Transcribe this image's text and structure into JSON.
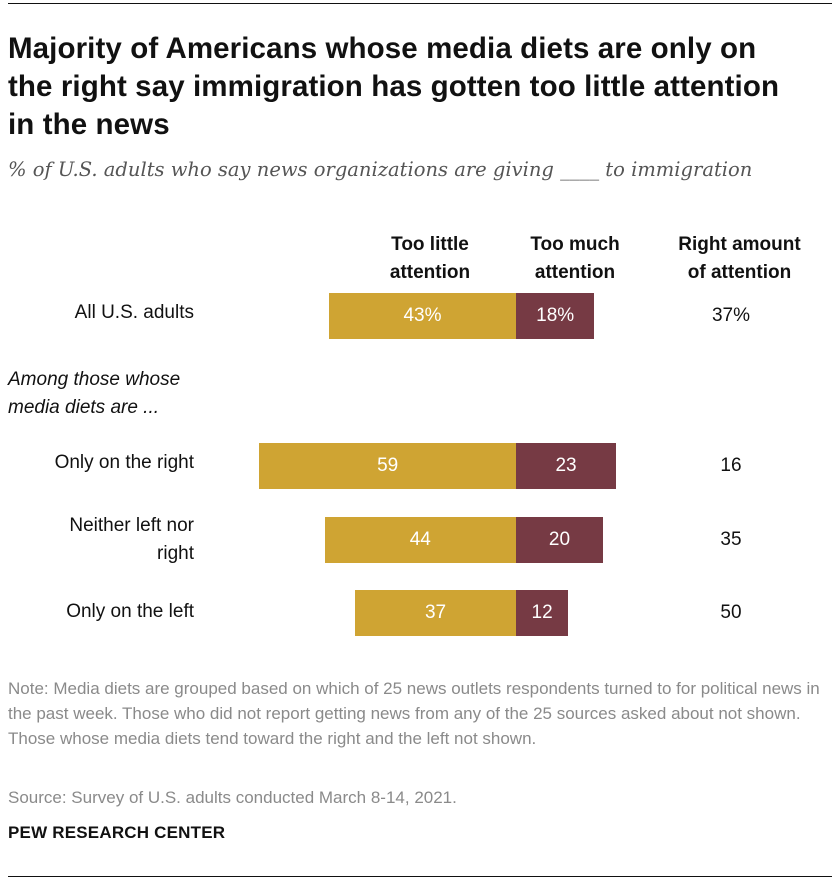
{
  "title": "Majority of Americans whose media diets are only on the right say immigration has gotten too little attention in the news",
  "subtitle": "% of U.S. adults who say news organizations are giving ____ to immigration",
  "group_label": "Among those whose\nmedia diets are ...",
  "note": "Note: Media diets are grouped based on which of 25 news outlets respondents turned to for political news in the past week. Those who did not report getting news from any of the 25 sources asked about not shown. Those whose media diets tend toward the right and the left not shown.",
  "source": "Source: Survey of U.S. adults conducted March 8-14, 2021.",
  "brand": "PEW RESEARCH CENTER",
  "colors": {
    "too_little": "#CFA433",
    "too_much": "#763A44",
    "rule": "#111111"
  },
  "chart_data": {
    "type": "bar",
    "orientation": "horizontal-diverging",
    "columns": [
      "Too little\nattention",
      "Too much\nattention",
      "Right amount\nof attention"
    ],
    "categories": [
      "All U.S. adults",
      "Only on the right",
      "Neither left nor\nright",
      "Only on the left"
    ],
    "series": [
      {
        "name": "Too little attention",
        "values": [
          43,
          59,
          44,
          37
        ],
        "labels": [
          "43%",
          "59",
          "44",
          "37"
        ]
      },
      {
        "name": "Too much attention",
        "values": [
          18,
          23,
          20,
          12
        ],
        "labels": [
          "18%",
          "23",
          "20",
          "12"
        ]
      },
      {
        "name": "Right amount of attention",
        "values": [
          37,
          16,
          35,
          50
        ],
        "labels": [
          "37%",
          "16",
          "35",
          "50"
        ]
      }
    ]
  }
}
